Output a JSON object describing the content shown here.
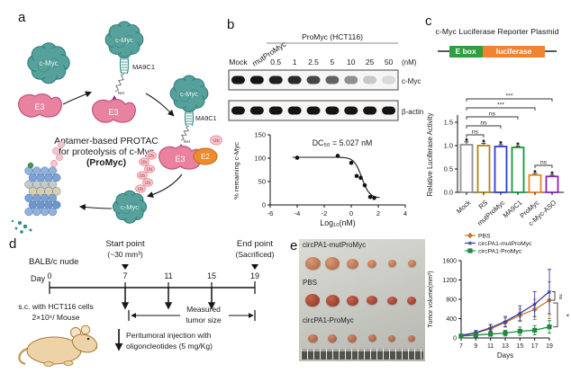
{
  "panel_a": {
    "label": "a",
    "protein_cmyc": "c-Myc",
    "protein_e3": "E3",
    "protein_e2": "E2",
    "ubiquitin": "Ub",
    "aptamer": "MA9C1",
    "linker_nh": "NH",
    "caption_line1": "Aptamer-based PROTAC",
    "caption_line2": "for proteolysis of c-Myc",
    "caption_line3": "(ProMyc)"
  },
  "panel_b": {
    "label": "b",
    "group_label": "ProMyc (HCT116)",
    "lane_labels": [
      "Mock",
      "mutProMyc",
      "0.5",
      "1",
      "2.5",
      "5",
      "10",
      "25",
      "50"
    ],
    "unit_label": "(nM)",
    "blots": [
      {
        "target": "c-Myc",
        "intensities": [
          1,
          1,
          0.95,
          0.9,
          0.78,
          0.65,
          0.45,
          0.2,
          0.13
        ]
      },
      {
        "target": "β-actin",
        "intensities": [
          1,
          1,
          1,
          1,
          1,
          1,
          1,
          1,
          1
        ]
      }
    ]
  },
  "panel_c": {
    "label": "c",
    "title": "c-Myc Luciferase Reporter Plasmid",
    "plasmid": {
      "ebox_label": "E box",
      "luciferase_label": "luciferase",
      "ebox_color": "#2f9e41",
      "luciferase_color": "#ef8432"
    }
  },
  "panel_d": {
    "label": "d",
    "mouse_strain": "BALB/c nude",
    "day_label": "Day",
    "days": [
      0,
      7,
      11,
      15,
      19
    ],
    "injection_days": [
      7,
      11,
      15
    ],
    "start_point": "Start point",
    "start_note": "(~30 mm³)",
    "end_point": "End point",
    "end_note": "(Sacrificed)",
    "sc_line1": "s.c. with HCT116 cells",
    "sc_line2": "2×10⁶/ Mouse",
    "measured_line1": "Measured",
    "measured_line2": "tumor size",
    "peritumoral_line1": "Peritumoral injection with",
    "peritumoral_line2": "oligoncleotides (5 mg/Kg)"
  },
  "panel_e": {
    "label": "e",
    "photo": {
      "rows": [
        {
          "label": "circPA1-mutProMyc",
          "widths": [
            17,
            16,
            13,
            10,
            9,
            9
          ],
          "color": "#b9714f",
          "highlight": "#d99a74"
        },
        {
          "label": "PBS",
          "widths": [
            16,
            15,
            13,
            12,
            11,
            10
          ],
          "color": "#9c3f30",
          "highlight": "#c4654c"
        },
        {
          "label": "circPA1-ProMyc",
          "widths": [
            11,
            10,
            10,
            9,
            8,
            8
          ],
          "color": "#aa6148",
          "highlight": "#cf8a66"
        }
      ]
    }
  },
  "chart_data": [
    {
      "id": "dc50_curve",
      "type": "scatter",
      "panel": "b",
      "annotation": "DC₅₀ = 5.027 nM",
      "xlabel": "Log₁₀(nM)",
      "ylabel": "% remaining c-Myc",
      "x": [
        -4,
        -1,
        0,
        0.4,
        0.7,
        1,
        1.4,
        1.7
      ],
      "y": [
        101,
        105,
        90,
        62,
        58,
        42,
        17,
        15
      ],
      "xlim": [
        -6,
        4
      ],
      "ylim": [
        0,
        150
      ],
      "xticks": [
        -6,
        -4,
        -2,
        0,
        2,
        4
      ],
      "yticks": [
        0,
        50,
        100,
        150
      ],
      "color": "#1a1a1a",
      "fit_line": true
    },
    {
      "id": "luciferase_activity",
      "type": "bar",
      "panel": "c",
      "ylabel": "Relative Luciferase Activity",
      "categories": [
        "Mock",
        "RS",
        "mutProMyc",
        "MA9C1",
        "ProMyc",
        "c-Myc-ASO"
      ],
      "values": [
        1.02,
        1.0,
        0.98,
        0.96,
        0.37,
        0.34
      ],
      "errors": [
        0.06,
        0.05,
        0.04,
        0.03,
        0.03,
        0.03
      ],
      "bar_colors": [
        "#919191",
        "#b0861a",
        "#2c3fc9",
        "#17983a",
        "#f08221",
        "#8a22b4"
      ],
      "ylim": [
        0,
        1.5
      ],
      "yticks": [
        "0.0",
        "0.5",
        "1.0",
        "1.5"
      ],
      "significance": [
        {
          "from": 0,
          "to": 1,
          "label": "ns"
        },
        {
          "from": 0,
          "to": 2,
          "label": "ns"
        },
        {
          "from": 0,
          "to": 3,
          "label": "ns"
        },
        {
          "from": 0,
          "to": 4,
          "label": "***"
        },
        {
          "from": 0,
          "to": 5,
          "label": "***"
        },
        {
          "from": 4,
          "to": 5,
          "label": "ns"
        }
      ]
    },
    {
      "id": "tumor_growth",
      "type": "line",
      "panel": "e",
      "xlabel": "Days",
      "ylabel": "Tumor volume(mm³)",
      "x": [
        7,
        9,
        11,
        13,
        15,
        17,
        19
      ],
      "series": [
        {
          "name": "PBS",
          "color": "#c07a2b",
          "marker": "diamond",
          "values": [
            50,
            100,
            190,
            320,
            470,
            590,
            780
          ],
          "errors": [
            25,
            45,
            70,
            95,
            130,
            210,
            380
          ]
        },
        {
          "name": "circPA1-mutProMyc",
          "color": "#3c3ba2",
          "marker": "star",
          "values": [
            55,
            110,
            210,
            340,
            510,
            700,
            960
          ],
          "errors": [
            25,
            45,
            70,
            105,
            155,
            260,
            460
          ]
        },
        {
          "name": "circPA1-ProMyc",
          "color": "#1d8a3e",
          "marker": "square",
          "values": [
            40,
            60,
            80,
            100,
            140,
            160,
            230
          ],
          "errors": [
            18,
            30,
            45,
            60,
            85,
            95,
            130
          ]
        }
      ],
      "ylim": [
        0,
        1600
      ],
      "yticks": [
        0,
        400,
        800,
        1200,
        1600
      ],
      "legend_position": "top-left",
      "significance": [
        {
          "between": [
            "circPA1-mutProMyc",
            "PBS"
          ],
          "label": "ns"
        },
        {
          "between": [
            "PBS",
            "circPA1-ProMyc"
          ],
          "label": "*"
        }
      ]
    }
  ]
}
